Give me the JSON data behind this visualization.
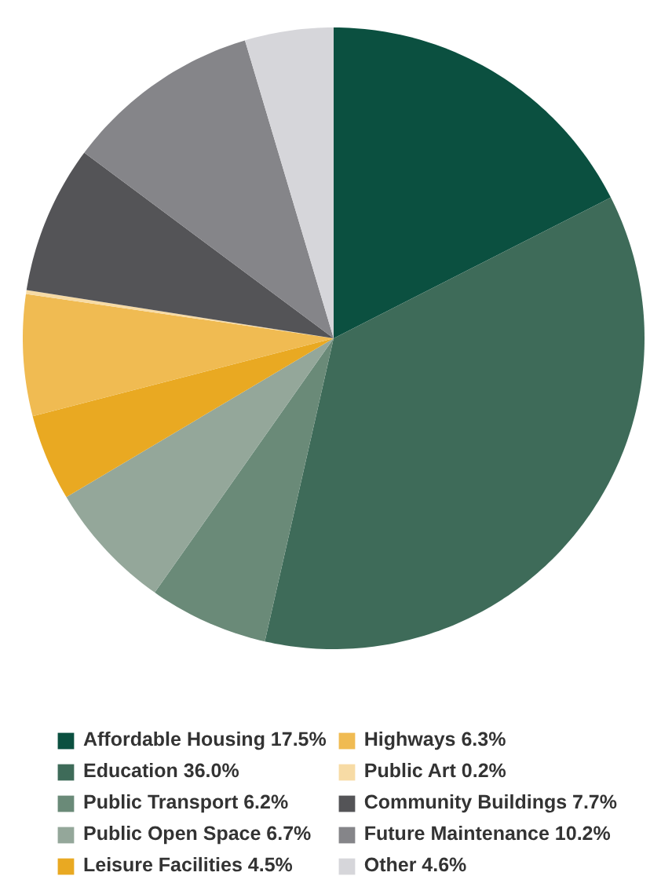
{
  "chart_data": {
    "type": "pie",
    "categories": [
      "Affordable Housing",
      "Education",
      "Public Transport",
      "Public Open Space",
      "Leisure Facilities",
      "Highways",
      "Public Art",
      "Community Buildings",
      "Future Maintenance",
      "Other"
    ],
    "values": [
      17.5,
      36.0,
      6.2,
      6.7,
      4.5,
      6.3,
      0.2,
      7.7,
      10.2,
      4.6
    ],
    "value_labels": [
      "17.5%",
      "36.0%",
      "6.2%",
      "6.7%",
      "4.5%",
      "6.3%",
      "0.2%",
      "7.7%",
      "10.2%",
      "4.6%"
    ],
    "colors": [
      "#0b5040",
      "#3e6b59",
      "#6a8a78",
      "#94a79a",
      "#e9a922",
      "#f0bb52",
      "#f7dba5",
      "#545457",
      "#858589",
      "#d6d6da"
    ],
    "legend": "bottom"
  }
}
